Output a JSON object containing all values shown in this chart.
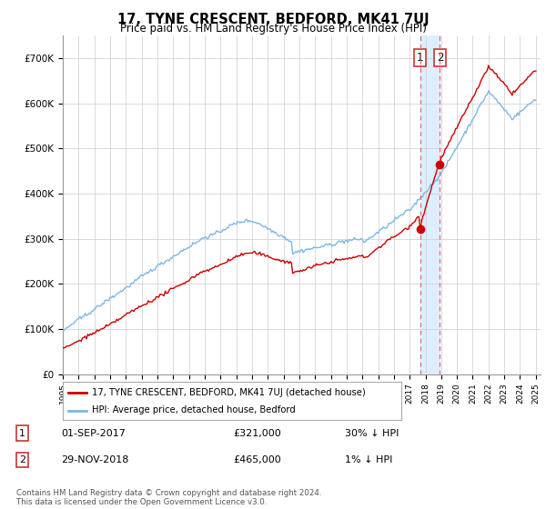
{
  "title": "17, TYNE CRESCENT, BEDFORD, MK41 7UJ",
  "subtitle": "Price paid vs. HM Land Registry's House Price Index (HPI)",
  "hpi_label": "HPI: Average price, detached house, Bedford",
  "property_label": "17, TYNE CRESCENT, BEDFORD, MK41 7UJ (detached house)",
  "year_start": 1995,
  "year_end": 2025,
  "ylim": [
    0,
    750000
  ],
  "yticks": [
    0,
    100000,
    200000,
    300000,
    400000,
    500000,
    600000,
    700000
  ],
  "ytick_labels": [
    "£0",
    "£100K",
    "£200K",
    "£300K",
    "£400K",
    "£500K",
    "£600K",
    "£700K"
  ],
  "hpi_color": "#7ab8e8",
  "property_color": "#cc0000",
  "shade_color": "#ddeeff",
  "sale1_year": 2017.67,
  "sale1_price": 321000,
  "sale2_year": 2018.92,
  "sale2_price": 465000,
  "sale1_label": "1",
  "sale2_label": "2",
  "sale1_info": "01-SEP-2017",
  "sale1_amount": "£321,000",
  "sale1_hpi": "30% ↓ HPI",
  "sale2_info": "29-NOV-2018",
  "sale2_amount": "£465,000",
  "sale2_hpi": "1% ↓ HPI",
  "footer": "Contains HM Land Registry data © Crown copyright and database right 2024.\nThis data is licensed under the Open Government Licence v3.0.",
  "background_color": "#ffffff",
  "grid_color": "#cccccc"
}
